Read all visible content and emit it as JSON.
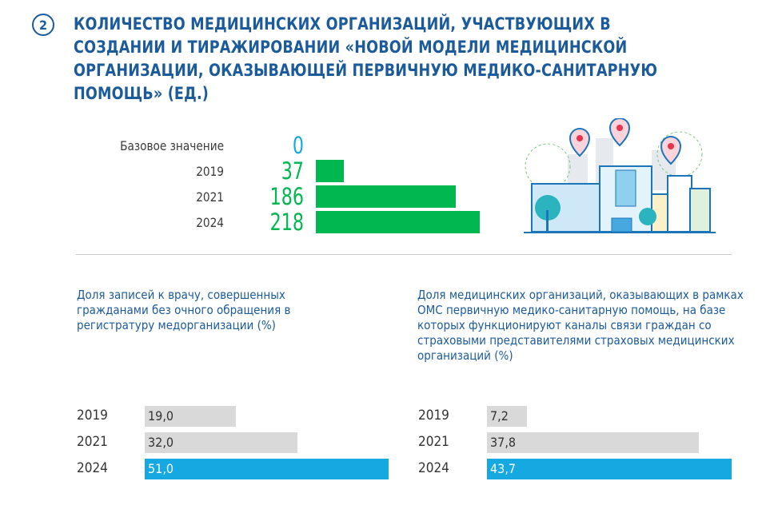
{
  "badge": "2",
  "title": "КОЛИЧЕСТВО МЕДИЦИНСКИХ ОРГАНИЗАЦИЙ, УЧАСТВУЮЩИХ В СОЗДАНИИ И ТИРАЖИРОВАНИИ «НОВОЙ МОДЕЛИ МЕДИЦИНСКОЙ ОРГАНИЗАЦИИ, ОКАЗЫВАЮЩЕЙ ПЕРВИЧНУЮ МЕДИКО-САНИТАРНУЮ ПОМОЩЬ» (ЕД.)",
  "colors": {
    "title": "#1c5b9b",
    "green": "#00b84f",
    "cyan": "#16a9e1",
    "gray": "#d9d9d9"
  },
  "illustration": "city-hospital-buildings-with-map-pins",
  "chart_data": [
    {
      "type": "bar",
      "orientation": "horizontal",
      "title": "КОЛИЧЕСТВО МЕДИЦИНСКИХ ОРГАНИЗАЦИЙ, УЧАСТВУЮЩИХ В СОЗДАНИИ И ТИРАЖИРОВАНИИ «НОВОЙ МОДЕЛИ МЕДИЦИНСКОЙ ОРГАНИЗАЦИИ, ОКАЗЫВАЮЩЕЙ ПЕРВИЧНУЮ МЕДИКО-САНИТАРНУЮ ПОМОЩЬ» (ЕД.)",
      "categories": [
        "Базовое значение",
        "2019",
        "2021",
        "2024"
      ],
      "labels": [
        "0",
        "37",
        "186",
        "218"
      ],
      "values": [
        0,
        37,
        186,
        218
      ],
      "xlim": [
        0,
        218
      ]
    },
    {
      "type": "bar",
      "orientation": "horizontal",
      "title": "Доля записей к врачу, совершенных гражданами без очного обращения в регистратуру медорганизации (%)",
      "categories": [
        "2019",
        "2021",
        "2024"
      ],
      "labels": [
        "19,0",
        "32,0",
        "51,0"
      ],
      "values": [
        19.0,
        32.0,
        51.0
      ],
      "xlim": [
        0,
        51
      ]
    },
    {
      "type": "bar",
      "orientation": "horizontal",
      "title": "Доля медицинских организаций, оказывающих в рамках ОМС первичную медико-санитарную помощь, на базе которых функционируют каналы связи граждан со страховыми представителями страховых медицинских организаций (%)",
      "categories": [
        "2019",
        "2021",
        "2024"
      ],
      "labels": [
        "7,2",
        "37,8",
        "43,7"
      ],
      "values": [
        7.2,
        37.8,
        43.7
      ],
      "xlim": [
        0,
        43.7
      ]
    }
  ]
}
